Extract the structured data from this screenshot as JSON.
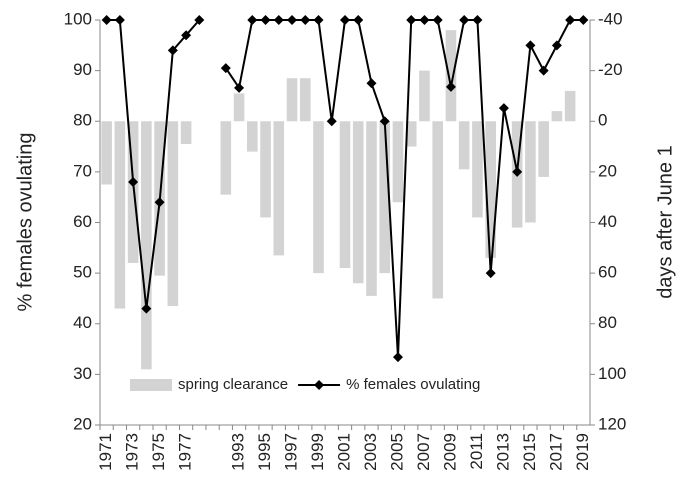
{
  "chart_data": {
    "type": "bar-line",
    "categories": [
      "1971",
      null,
      "1973",
      null,
      "1975",
      null,
      "1977",
      null,
      null,
      null,
      "1993",
      null,
      "1995",
      null,
      "1997",
      null,
      "1999",
      null,
      "2001",
      null,
      "2003",
      null,
      "2005",
      null,
      "2007",
      null,
      "2009",
      null,
      "2011",
      null,
      "2013",
      null,
      "2015",
      null,
      "2017",
      null,
      "2019"
    ],
    "series": [
      {
        "name": "spring clearance",
        "type": "bar",
        "axis": "y2",
        "color": "#d3d3d3",
        "values": [
          25,
          74,
          56,
          98,
          61,
          73,
          9,
          null,
          null,
          29,
          -11,
          12,
          38,
          53,
          -17,
          -17,
          60,
          null,
          58,
          64,
          69,
          60,
          32,
          10,
          -20,
          70,
          -36,
          19,
          38,
          54,
          null,
          42,
          40,
          22,
          -4,
          -12,
          null
        ]
      },
      {
        "name": "% females ovulating",
        "type": "line",
        "color": "#000000",
        "values": [
          100,
          100,
          68,
          43,
          64,
          94,
          97,
          100,
          null,
          90.5,
          86.6,
          100,
          100,
          100,
          100,
          100,
          100,
          80,
          100,
          100,
          87.5,
          80,
          33.4,
          100,
          100,
          100,
          86.8,
          100,
          100,
          50,
          82.6,
          70,
          95,
          90,
          95,
          100,
          100
        ]
      }
    ],
    "y_label": "% females ovulating",
    "y2_label": "days after June 1",
    "ylim": [
      20,
      100
    ],
    "yticks": [
      20,
      30,
      40,
      50,
      60,
      70,
      80,
      90,
      100
    ],
    "y2lim": [
      120,
      -40
    ],
    "y2ticks": [
      120,
      100,
      80,
      60,
      40,
      20,
      0,
      -20,
      -40
    ],
    "legend": "lower center",
    "grid": false
  }
}
